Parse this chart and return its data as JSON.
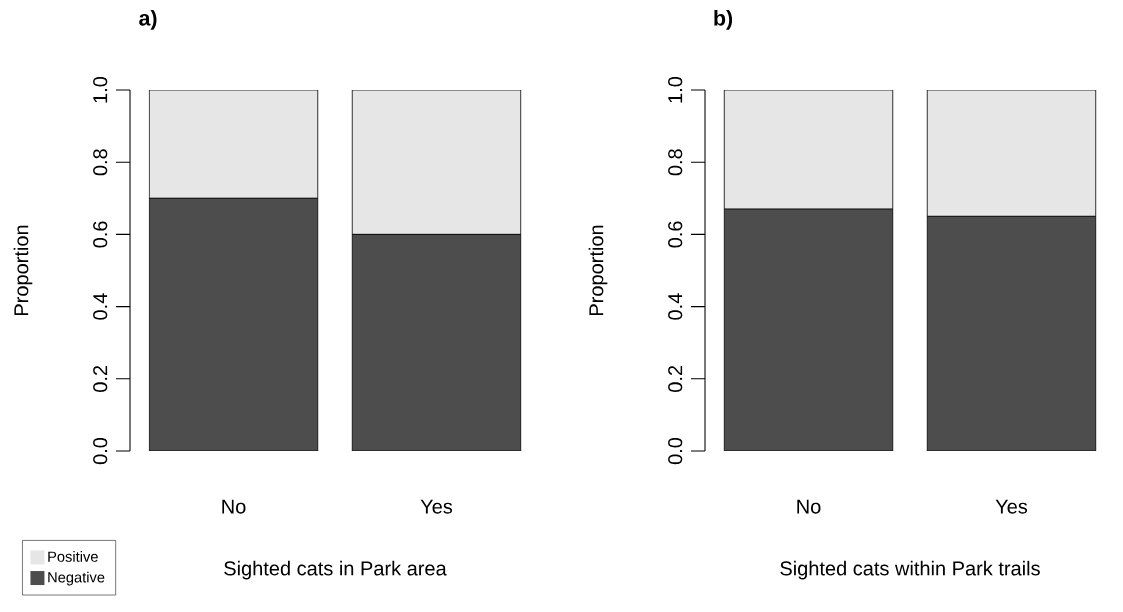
{
  "chart_data": [
    {
      "type": "bar",
      "stacked": true,
      "title": "a)",
      "xlabel": "Sighted cats in Park area",
      "ylabel": "Proportion",
      "categories": [
        "No",
        "Yes"
      ],
      "series": [
        {
          "name": "Negative",
          "color": "#4d4d4d",
          "values": [
            0.7,
            0.6
          ]
        },
        {
          "name": "Positive",
          "color": "#e6e6e6",
          "values": [
            0.3,
            0.4
          ]
        }
      ],
      "ylim": [
        0,
        1
      ],
      "yticks": [
        {
          "value": 0,
          "label": "0.0"
        },
        {
          "value": 0.2,
          "label": "0.2"
        },
        {
          "value": 0.4,
          "label": "0.4"
        },
        {
          "value": 0.6,
          "label": "0.6"
        },
        {
          "value": 0.8,
          "label": "0.8"
        },
        {
          "value": 1,
          "label": "1.0"
        }
      ],
      "legend": "bottom left"
    },
    {
      "type": "bar",
      "stacked": true,
      "title": "b)",
      "xlabel": "Sighted cats within Park trails",
      "ylabel": "Proportion",
      "categories": [
        "No",
        "Yes"
      ],
      "series": [
        {
          "color": "#4d4d4d",
          "values": [
            0.67,
            0.65
          ]
        },
        {
          "color": "#e6e6e6",
          "values": [
            0.33,
            0.35
          ]
        }
      ],
      "ylim": [
        0,
        1
      ],
      "yticks": [
        {
          "value": 0,
          "label": "0.0"
        },
        {
          "value": 0.2,
          "label": "0.2"
        },
        {
          "value": 0.4,
          "label": "0.4"
        },
        {
          "value": 0.6,
          "label": "0.6"
        },
        {
          "value": 0.8,
          "label": "0.8"
        },
        {
          "value": 1,
          "label": "1.0"
        }
      ]
    }
  ]
}
